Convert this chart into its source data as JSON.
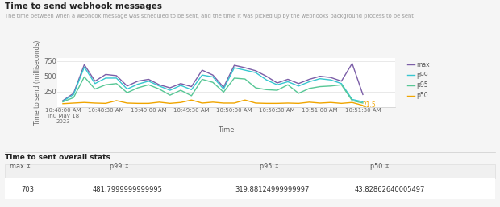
{
  "title": "Time to send webhook messages",
  "subtitle": "The time between when a webhook message was scheduled to be sent, and the time it was picked up by the webhooks background process to be sent",
  "ylabel": "Time to send (milliseconds)",
  "xlabel": "Time",
  "ylim": [
    0,
    800
  ],
  "yticks": [
    0,
    250,
    500,
    750
  ],
  "xtick_labels": [
    "10:48:00 AM\nThu May 18\n2023",
    "10:48:30 AM",
    "10:49:00 AM",
    "10:49:30 AM",
    "10:50:00 AM",
    "10:50:30 AM",
    "10:51:00 AM",
    "10:51:30 AM"
  ],
  "colors": {
    "max": "#7b5ea7",
    "p99": "#36c7d0",
    "p95": "#57c795",
    "p50": "#f0a500"
  },
  "annotation_label": "21.5",
  "stats_title": "Time to sent overall stats",
  "stats": {
    "max": "703",
    "p99": "481.7999999999995",
    "p95": "319.88124999999997",
    "p50": "43.82862640005497"
  },
  "x_values": [
    0,
    1,
    2,
    3,
    4,
    5,
    6,
    7,
    8,
    9,
    10,
    11,
    12,
    13,
    14,
    15,
    16,
    17,
    18,
    19,
    20,
    21,
    22,
    23,
    24,
    25,
    26,
    27,
    28
  ],
  "max_values": [
    100,
    220,
    690,
    420,
    530,
    510,
    340,
    420,
    450,
    360,
    310,
    380,
    330,
    600,
    520,
    320,
    680,
    640,
    590,
    500,
    390,
    450,
    380,
    450,
    500,
    480,
    420,
    710,
    200
  ],
  "p99_values": [
    90,
    200,
    650,
    380,
    470,
    470,
    290,
    370,
    420,
    340,
    270,
    350,
    280,
    520,
    490,
    290,
    640,
    600,
    560,
    440,
    360,
    410,
    340,
    410,
    460,
    440,
    380,
    120,
    80
  ],
  "p95_values": [
    80,
    150,
    490,
    290,
    360,
    380,
    230,
    310,
    360,
    290,
    190,
    270,
    180,
    450,
    400,
    240,
    470,
    455,
    310,
    280,
    270,
    360,
    220,
    300,
    330,
    340,
    360,
    100,
    60
  ],
  "p50_values": [
    50,
    60,
    70,
    60,
    55,
    100,
    60,
    55,
    55,
    75,
    55,
    70,
    110,
    60,
    75,
    60,
    60,
    110,
    60,
    55,
    55,
    60,
    55,
    75,
    60,
    70,
    55,
    70,
    22
  ],
  "background_color": "#f5f5f5",
  "plot_bg_color": "#ffffff",
  "grid_color": "#e0e0e0",
  "stats_bg": "#ffffff",
  "stats_header_bg": "#f0f0f0"
}
